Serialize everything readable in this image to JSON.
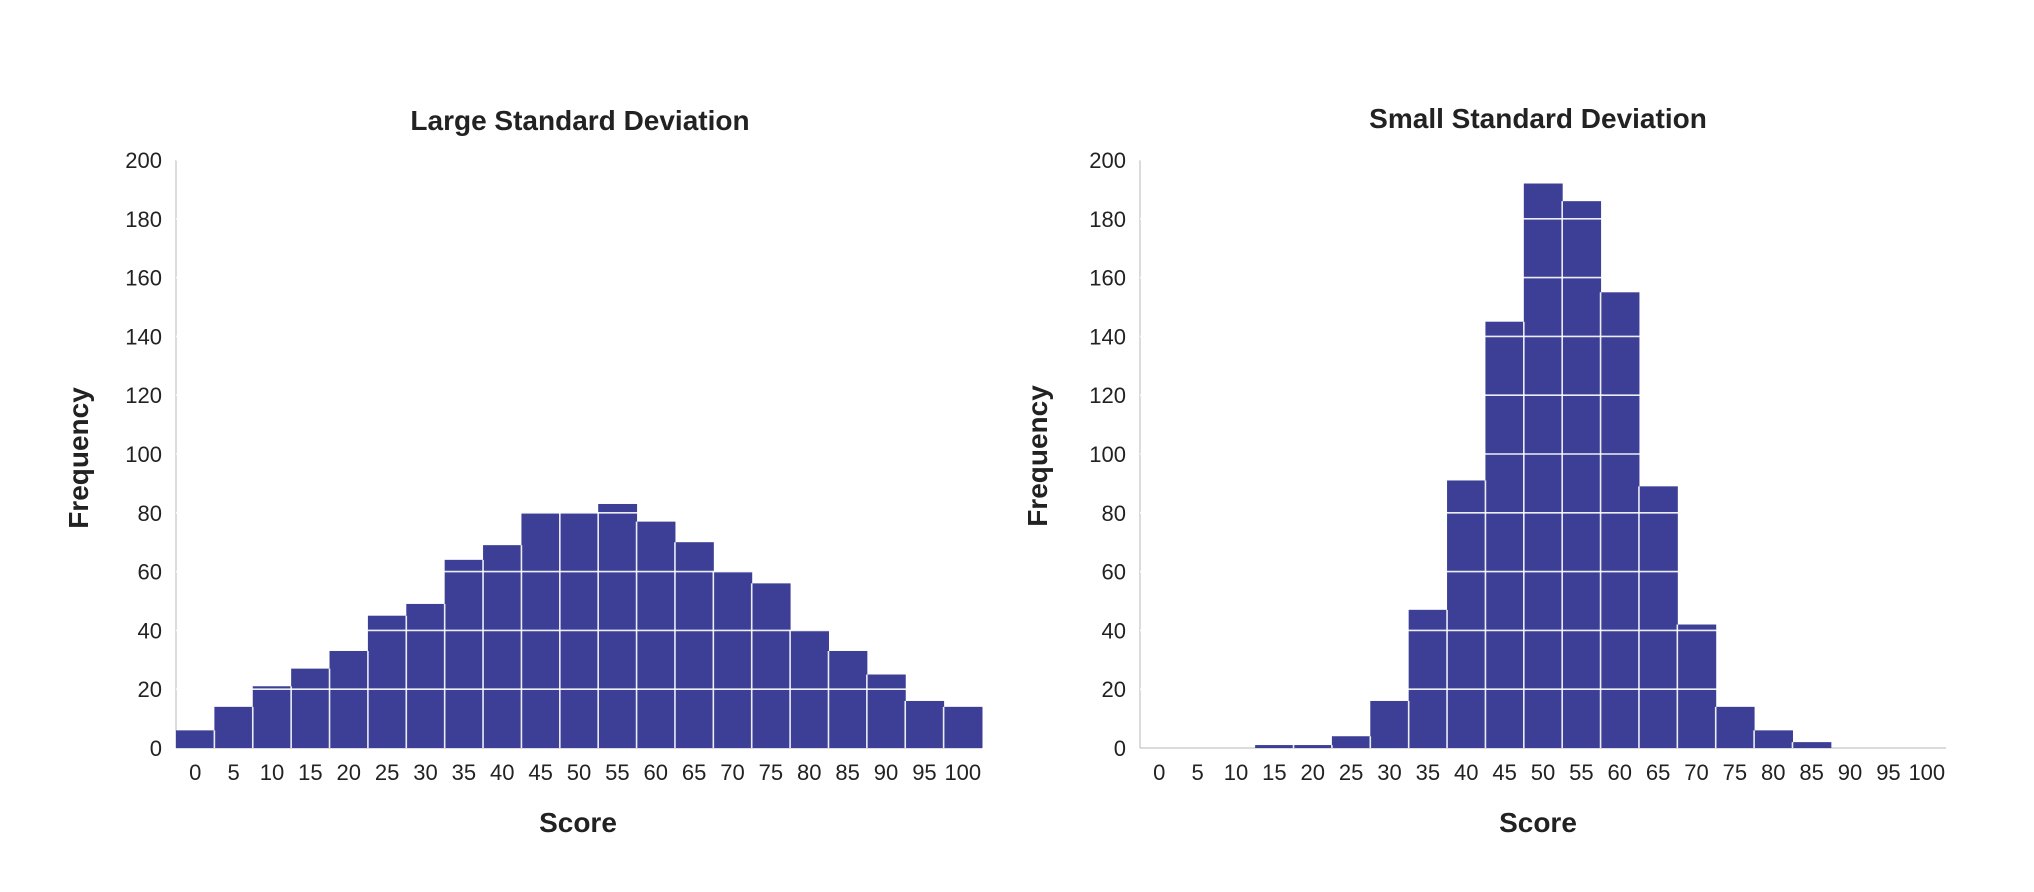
{
  "chart_data": [
    {
      "type": "bar",
      "title": "Large Standard Deviation",
      "xlabel": "Score",
      "ylabel": "Frequency",
      "ylim": [
        0,
        200
      ],
      "yticks": [
        "0",
        "20",
        "40",
        "60",
        "80",
        "100",
        "120",
        "140",
        "160",
        "180",
        "200"
      ],
      "categories": [
        "0",
        "5",
        "10",
        "15",
        "20",
        "25",
        "30",
        "35",
        "40",
        "45",
        "50",
        "55",
        "60",
        "65",
        "70",
        "75",
        "80",
        "85",
        "90",
        "95",
        "100"
      ],
      "values": [
        6,
        14,
        21,
        27,
        33,
        45,
        49,
        64,
        69,
        80,
        80,
        83,
        77,
        70,
        60,
        56,
        40,
        33,
        25,
        16,
        14
      ],
      "color": "#3d3f96",
      "grid": "white lines over bars",
      "legend": "none"
    },
    {
      "type": "bar",
      "title": "Small Standard Deviation",
      "xlabel": "Score",
      "ylabel": "Frequency",
      "ylim": [
        0,
        200
      ],
      "yticks": [
        "0",
        "20",
        "40",
        "60",
        "80",
        "100",
        "120",
        "140",
        "160",
        "180",
        "200"
      ],
      "categories": [
        "0",
        "5",
        "10",
        "15",
        "20",
        "25",
        "30",
        "35",
        "40",
        "45",
        "50",
        "55",
        "60",
        "65",
        "70",
        "75",
        "80",
        "85",
        "90",
        "95",
        "100"
      ],
      "values": [
        0,
        0,
        0,
        1,
        1,
        4,
        16,
        47,
        91,
        145,
        192,
        186,
        155,
        89,
        42,
        14,
        6,
        2,
        0,
        0,
        0
      ],
      "color": "#3d3f96",
      "grid": "white lines over bars",
      "legend": "none"
    }
  ]
}
